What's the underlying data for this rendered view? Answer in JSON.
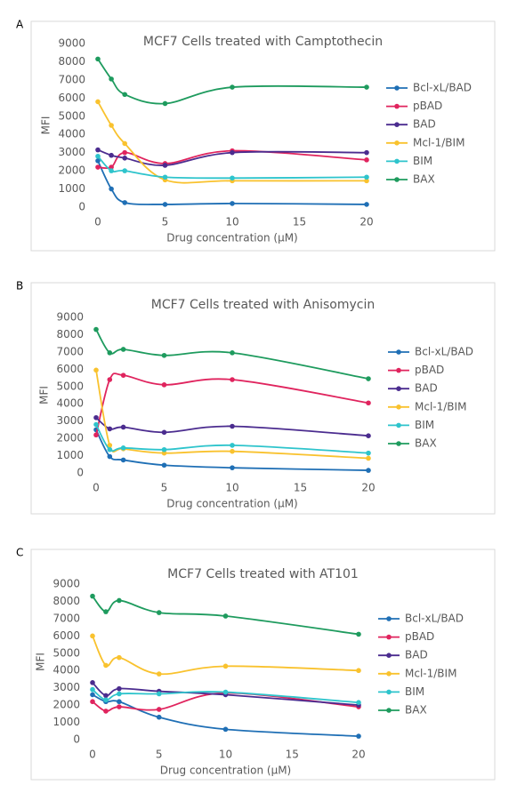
{
  "chart_data": [
    {
      "type": "line",
      "panel": "A",
      "title": "MCF7 Cells treated with Camptothecin",
      "x_label": "Drug concentration (µM)",
      "y_label": "MFI",
      "x": [
        0,
        1,
        2,
        5,
        10,
        20
      ],
      "xlim": [
        0,
        20
      ],
      "xticks": [
        0,
        5,
        10,
        15,
        20
      ],
      "ylim": [
        0,
        9000
      ],
      "yticks": [
        0,
        1000,
        2000,
        3000,
        4000,
        5000,
        6000,
        7000,
        8000,
        9000
      ],
      "grid": false,
      "legend": "right",
      "series": [
        {
          "name": "Bcl-xL/BAD",
          "color": "#1f6fb5",
          "values": [
            2550,
            1000,
            250,
            150,
            200,
            150
          ]
        },
        {
          "name": "pBAD",
          "color": "#e0245e",
          "values": [
            2200,
            2200,
            3000,
            2400,
            3100,
            2600
          ]
        },
        {
          "name": "BAD",
          "color": "#4b2c8f",
          "values": [
            3150,
            2850,
            2700,
            2300,
            3000,
            3000
          ]
        },
        {
          "name": "Mcl-1/BIM",
          "color": "#f9c22e",
          "values": [
            5800,
            4500,
            3500,
            1500,
            1450,
            1450
          ]
        },
        {
          "name": "BIM",
          "color": "#2ec4cc",
          "values": [
            2800,
            2000,
            2000,
            1650,
            1600,
            1650
          ]
        },
        {
          "name": "BAX",
          "color": "#1e9b5e",
          "values": [
            8150,
            7050,
            6200,
            5700,
            6600,
            6600
          ]
        }
      ]
    },
    {
      "type": "line",
      "panel": "B",
      "title": "MCF7 Cells treated with Anisomycin",
      "x_label": "Drug concentration (µM)",
      "y_label": "MFI",
      "x": [
        0,
        1,
        2,
        5,
        10,
        20
      ],
      "xlim": [
        0,
        20
      ],
      "xticks": [
        0,
        5,
        10,
        15,
        20
      ],
      "ylim": [
        0,
        9000
      ],
      "yticks": [
        0,
        1000,
        2000,
        3000,
        4000,
        5000,
        6000,
        7000,
        8000,
        9000
      ],
      "grid": false,
      "legend": "right",
      "series": [
        {
          "name": "Bcl-xL/BAD",
          "color": "#1f6fb5",
          "values": [
            2500,
            950,
            750,
            450,
            300,
            150
          ]
        },
        {
          "name": "pBAD",
          "color": "#e0245e",
          "values": [
            2200,
            5400,
            5650,
            5100,
            5400,
            4050
          ]
        },
        {
          "name": "BAD",
          "color": "#4b2c8f",
          "values": [
            3200,
            2550,
            2650,
            2350,
            2700,
            2150
          ]
        },
        {
          "name": "Mcl-1/BIM",
          "color": "#f9c22e",
          "values": [
            5950,
            1600,
            1400,
            1150,
            1250,
            850
          ]
        },
        {
          "name": "BIM",
          "color": "#2ec4cc",
          "values": [
            2800,
            1350,
            1450,
            1350,
            1600,
            1150
          ]
        },
        {
          "name": "BAX",
          "color": "#1e9b5e",
          "values": [
            8300,
            6950,
            7150,
            6800,
            6950,
            5450
          ]
        }
      ]
    },
    {
      "type": "line",
      "panel": "C",
      "title": "MCF7 Cells treated with AT101",
      "x_label": "Drug concentration (µM)",
      "y_label": "MFI",
      "x": [
        0,
        1,
        2,
        5,
        10,
        20
      ],
      "xlim": [
        0,
        20
      ],
      "xticks": [
        0,
        5,
        10,
        15,
        20
      ],
      "ylim": [
        0,
        9000
      ],
      "yticks": [
        0,
        1000,
        2000,
        3000,
        4000,
        5000,
        6000,
        7000,
        8000,
        9000
      ],
      "grid": false,
      "legend": "right",
      "series": [
        {
          "name": "Bcl-xL/BAD",
          "color": "#1f6fb5",
          "values": [
            2600,
            2200,
            2200,
            1300,
            600,
            200
          ]
        },
        {
          "name": "pBAD",
          "color": "#e0245e",
          "values": [
            2200,
            1650,
            1900,
            1750,
            2700,
            1900
          ]
        },
        {
          "name": "BAD",
          "color": "#4b2c8f",
          "values": [
            3300,
            2550,
            2950,
            2800,
            2600,
            2000
          ]
        },
        {
          "name": "Mcl-1/BIM",
          "color": "#f9c22e",
          "values": [
            6000,
            4300,
            4750,
            3800,
            4250,
            4000
          ]
        },
        {
          "name": "BIM",
          "color": "#2ec4cc",
          "values": [
            2900,
            2300,
            2650,
            2650,
            2750,
            2150
          ]
        },
        {
          "name": "BAX",
          "color": "#1e9b5e",
          "values": [
            8300,
            7400,
            8050,
            7350,
            7150,
            6100
          ]
        }
      ]
    }
  ]
}
